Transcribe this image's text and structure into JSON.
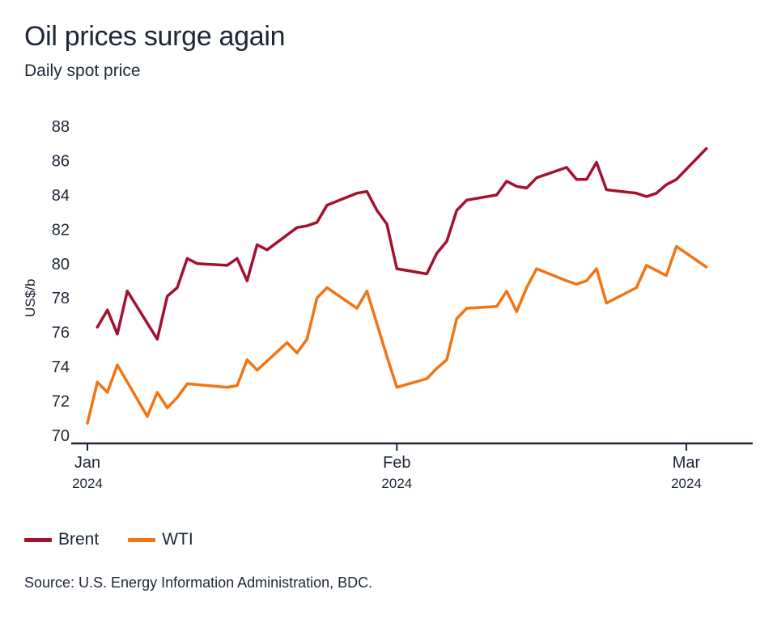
{
  "chart_data": {
    "type": "line",
    "title": "Oil prices surge again",
    "subtitle": "Daily spot price",
    "ylabel": "US$/b",
    "xlabel": "",
    "ylim": [
      70,
      88
    ],
    "yticks": [
      70,
      72,
      74,
      76,
      78,
      80,
      82,
      84,
      86,
      88
    ],
    "x_range": [
      0,
      66
    ],
    "xticks": [
      {
        "pos": 0,
        "label": "Jan",
        "year": "2024"
      },
      {
        "pos": 31,
        "label": "Feb",
        "year": "2024"
      },
      {
        "pos": 60,
        "label": "Mar",
        "year": "2024"
      }
    ],
    "series": [
      {
        "name": "Brent",
        "color": "#a5102f",
        "points": [
          [
            1,
            76.3
          ],
          [
            2,
            77.3
          ],
          [
            3,
            75.9
          ],
          [
            4,
            78.4
          ],
          [
            7,
            75.6
          ],
          [
            8,
            78.1
          ],
          [
            9,
            78.6
          ],
          [
            10,
            80.3
          ],
          [
            11,
            80.0
          ],
          [
            14,
            79.9
          ],
          [
            15,
            80.3
          ],
          [
            16,
            79.0
          ],
          [
            17,
            81.1
          ],
          [
            18,
            80.8
          ],
          [
            21,
            82.1
          ],
          [
            22,
            82.2
          ],
          [
            23,
            82.4
          ],
          [
            24,
            83.4
          ],
          [
            27,
            84.1
          ],
          [
            28,
            84.2
          ],
          [
            29,
            83.1
          ],
          [
            30,
            82.3
          ],
          [
            31,
            79.7
          ],
          [
            34,
            79.4
          ],
          [
            35,
            80.6
          ],
          [
            36,
            81.3
          ],
          [
            37,
            83.1
          ],
          [
            38,
            83.7
          ],
          [
            41,
            84.0
          ],
          [
            42,
            84.8
          ],
          [
            43,
            84.5
          ],
          [
            44,
            84.4
          ],
          [
            45,
            85.0
          ],
          [
            48,
            85.6
          ],
          [
            49,
            84.9
          ],
          [
            50,
            84.9
          ],
          [
            51,
            85.9
          ],
          [
            52,
            84.3
          ],
          [
            55,
            84.1
          ],
          [
            56,
            83.9
          ],
          [
            57,
            84.1
          ],
          [
            58,
            84.6
          ],
          [
            59,
            84.9
          ],
          [
            62,
            86.7
          ]
        ]
      },
      {
        "name": "WTI",
        "color": "#f27413",
        "points": [
          [
            0,
            70.7
          ],
          [
            1,
            73.1
          ],
          [
            2,
            72.5
          ],
          [
            3,
            74.1
          ],
          [
            6,
            71.1
          ],
          [
            7,
            72.5
          ],
          [
            8,
            71.6
          ],
          [
            9,
            72.2
          ],
          [
            10,
            73.0
          ],
          [
            14,
            72.8
          ],
          [
            15,
            72.9
          ],
          [
            16,
            74.4
          ],
          [
            17,
            73.8
          ],
          [
            20,
            75.4
          ],
          [
            21,
            74.8
          ],
          [
            22,
            75.6
          ],
          [
            23,
            78.0
          ],
          [
            24,
            78.6
          ],
          [
            27,
            77.4
          ],
          [
            28,
            78.4
          ],
          [
            30,
            74.6
          ],
          [
            31,
            72.8
          ],
          [
            34,
            73.3
          ],
          [
            35,
            73.9
          ],
          [
            36,
            74.4
          ],
          [
            37,
            76.8
          ],
          [
            38,
            77.4
          ],
          [
            41,
            77.5
          ],
          [
            42,
            78.4
          ],
          [
            43,
            77.2
          ],
          [
            44,
            78.6
          ],
          [
            45,
            79.7
          ],
          [
            48,
            79.0
          ],
          [
            49,
            78.8
          ],
          [
            50,
            79.0
          ],
          [
            51,
            79.7
          ],
          [
            52,
            77.7
          ],
          [
            55,
            78.6
          ],
          [
            56,
            79.9
          ],
          [
            58,
            79.3
          ],
          [
            59,
            81.0
          ],
          [
            62,
            79.8
          ]
        ]
      }
    ],
    "legend_position": "bottom-left",
    "source": "Source: U.S. Energy Information Administration, BDC."
  }
}
